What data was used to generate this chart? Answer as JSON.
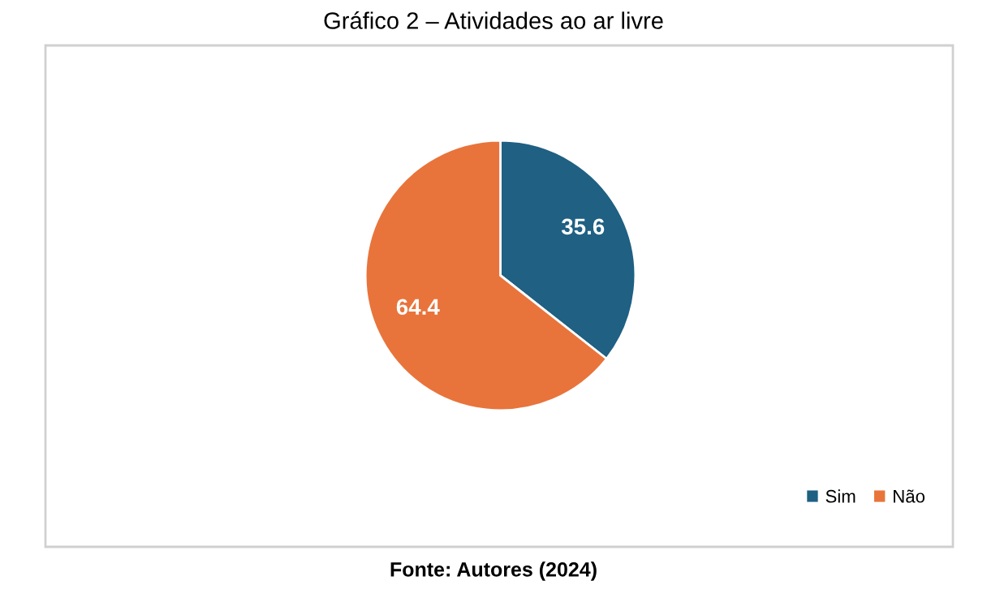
{
  "chart_data": {
    "type": "pie",
    "title": "Gráfico 2 – Atividades ao ar livre",
    "categories": [
      "Sim",
      "Não"
    ],
    "values": [
      35.6,
      64.4
    ],
    "colors": [
      "#1f6083",
      "#e8743b"
    ],
    "data_labels": true,
    "legend": "bottom right",
    "annotations": [
      "Fonte: Autores (2024)"
    ]
  }
}
